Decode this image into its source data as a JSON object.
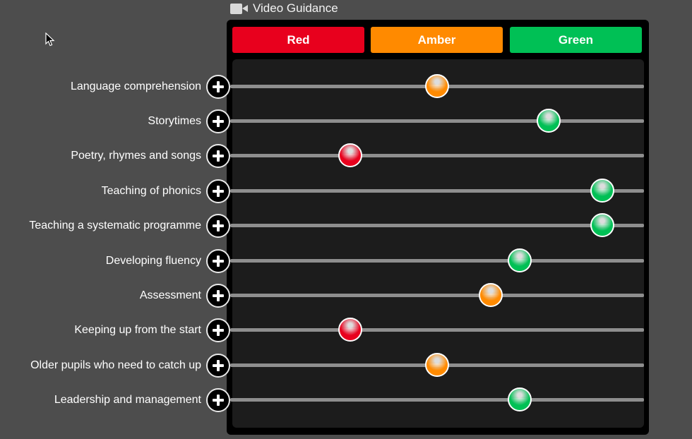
{
  "header": {
    "title": "Video Guidance"
  },
  "buttons": [
    {
      "label": "Red",
      "color": "#e8001d"
    },
    {
      "label": "Amber",
      "color": "#ff8a00"
    },
    {
      "label": "Green",
      "color": "#00c055"
    }
  ],
  "colors": {
    "red": "#e8001d",
    "amber": "#ff8a00",
    "green": "#00c055"
  },
  "icons": {
    "title_icon": "video-camera-icon",
    "row_button_icon": "plus-icon",
    "cursor": "mouse-pointer-icon"
  },
  "rows": [
    {
      "label": "Language comprehension",
      "status": "amber",
      "level": 0.5
    },
    {
      "label": "Storytimes",
      "status": "green",
      "level": 0.77
    },
    {
      "label": "Poetry, rhymes and songs",
      "status": "red",
      "level": 0.29
    },
    {
      "label": "Teaching of phonics",
      "status": "green",
      "level": 0.9
    },
    {
      "label": "Teaching a systematic programme",
      "status": "green",
      "level": 0.9
    },
    {
      "label": "Developing fluency",
      "status": "green",
      "level": 0.7
    },
    {
      "label": "Assessment",
      "status": "amber",
      "level": 0.63
    },
    {
      "label": "Keeping up from the start",
      "status": "red",
      "level": 0.29
    },
    {
      "label": "Older pupils who need to catch up",
      "status": "amber",
      "level": 0.5
    },
    {
      "label": "Leadership and management",
      "status": "green",
      "level": 0.7
    }
  ]
}
